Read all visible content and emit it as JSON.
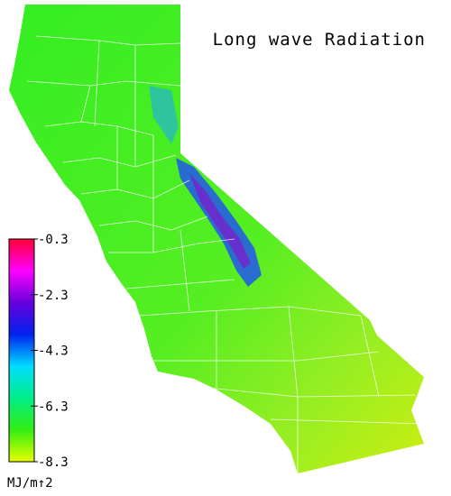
{
  "map": {
    "title": "Long wave Radiation",
    "colorbar": {
      "label": "MJ/m↑2",
      "lim": [
        -8.3,
        -0.3
      ],
      "ticks": [
        -0.3,
        -2.3,
        -4.3,
        -6.3,
        -8.3
      ],
      "colors": [
        "#e6ff00",
        "#33ee11",
        "#00ee88",
        "#00ddff",
        "#0022ee",
        "#6600dd",
        "#ff00ff",
        "#ff0033"
      ]
    }
  }
}
